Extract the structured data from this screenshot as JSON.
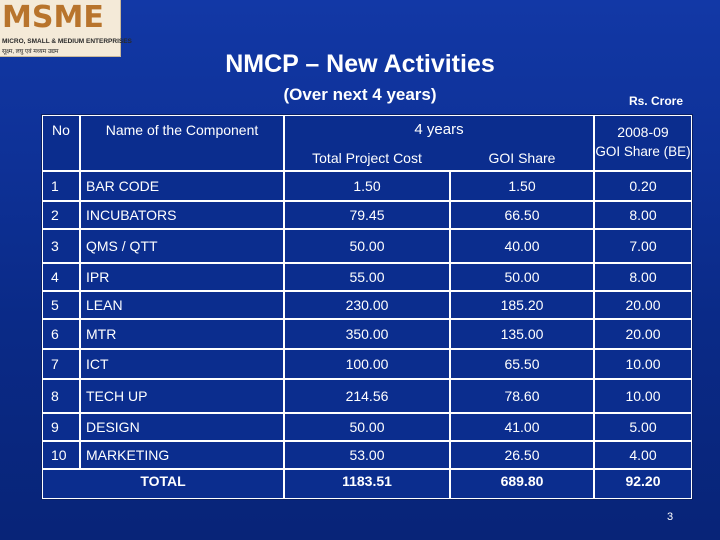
{
  "logo": {
    "mark": "MSME",
    "line1": "MICRO, SMALL & MEDIUM ENTERPRISES",
    "line2": "सूक्ष्म, लघु एवं मध्यम उद्यम"
  },
  "slide": {
    "title": "NMCP – New Activities",
    "subtitle": "(Over next 4 years)",
    "unit": "Rs. Crore",
    "page_number": "3"
  },
  "table": {
    "headers": {
      "no": "No",
      "name": "Name of the Component",
      "years_group": "4 years",
      "total_project_cost": "Total Project Cost",
      "goi_share": "GOI Share",
      "be_year": "2008-09",
      "be_label": "GOI Share (BE)"
    },
    "rows": [
      {
        "no": "1",
        "name": "BAR CODE",
        "tpc": "1.50",
        "goi": "1.50",
        "be": "0.20"
      },
      {
        "no": "2",
        "name": "INCUBATORS",
        "tpc": "79.45",
        "goi": "66.50",
        "be": "8.00"
      },
      {
        "no": "3",
        "name": "QMS / QTT",
        "tpc": "50.00",
        "goi": "40.00",
        "be": "7.00"
      },
      {
        "no": "4",
        "name": "IPR",
        "tpc": "55.00",
        "goi": "50.00",
        "be": "8.00"
      },
      {
        "no": "5",
        "name": "LEAN",
        "tpc": "230.00",
        "goi": "185.20",
        "be": "20.00"
      },
      {
        "no": "6",
        "name": "MTR",
        "tpc": "350.00",
        "goi": "135.00",
        "be": "20.00"
      },
      {
        "no": "7",
        "name": "ICT",
        "tpc": "100.00",
        "goi": "65.50",
        "be": "10.00"
      },
      {
        "no": "8",
        "name": "TECH UP",
        "tpc": "214.56",
        "goi": "78.60",
        "be": "10.00"
      },
      {
        "no": "9",
        "name": "DESIGN",
        "tpc": "50.00",
        "goi": "41.00",
        "be": "5.00"
      },
      {
        "no": "10",
        "name": "MARKETING",
        "tpc": "53.00",
        "goi": "26.50",
        "be": "4.00"
      }
    ],
    "total": {
      "label": "TOTAL",
      "tpc": "1183.51",
      "goi": "689.80",
      "be": "92.20"
    }
  }
}
